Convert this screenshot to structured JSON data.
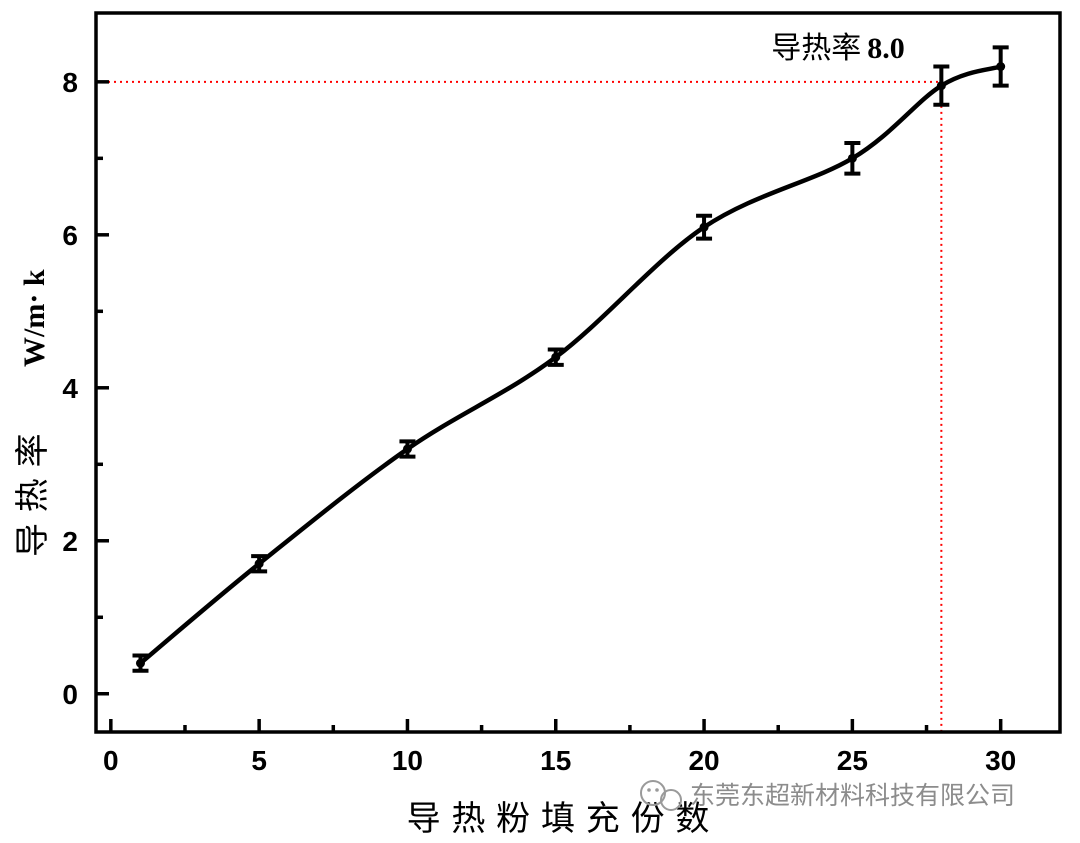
{
  "chart_data": {
    "type": "line",
    "xlabel": "导 热 粉 填 充 份 数",
    "ylabel_cjk": "导 热 率",
    "ylabel_unit": "W/m· k",
    "xlim": [
      -0.5,
      32
    ],
    "ylim": [
      -0.5,
      8.9
    ],
    "xticks": [
      0,
      5,
      10,
      15,
      20,
      25,
      30
    ],
    "yticks": [
      0,
      2,
      4,
      6,
      8
    ],
    "grid": false,
    "series": [
      {
        "x": [
          1,
          5,
          10,
          15,
          20,
          25,
          28,
          30
        ],
        "y": [
          0.4,
          1.7,
          3.2,
          4.4,
          6.1,
          7.0,
          7.95,
          8.2
        ],
        "err": [
          0.1,
          0.1,
          0.1,
          0.1,
          0.15,
          0.2,
          0.25,
          0.25
        ],
        "color": "#000000"
      }
    ],
    "reference": {
      "x": 28,
      "y": 8,
      "color": "#ff0000",
      "label": "导热率",
      "label_value": "8.0"
    }
  },
  "watermark": {
    "text": "东莞东超新材料科技有限公司",
    "icon": "wechat-icon"
  }
}
